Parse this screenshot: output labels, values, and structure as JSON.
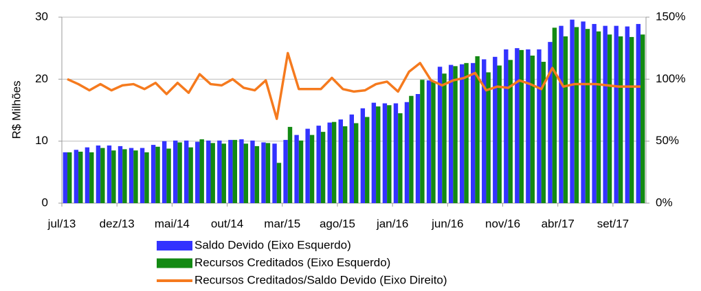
{
  "chart_data": {
    "type": "bar-line",
    "y_label": "R$ Milhões",
    "categories": [
      "jul/13",
      null,
      null,
      null,
      null,
      "dez/13",
      null,
      null,
      null,
      null,
      "mai/14",
      null,
      null,
      null,
      null,
      "out/14",
      null,
      null,
      null,
      null,
      "mar/15",
      null,
      null,
      null,
      null,
      "ago/15",
      null,
      null,
      null,
      null,
      "jan/16",
      null,
      null,
      null,
      null,
      "jun/16",
      null,
      null,
      null,
      null,
      "nov/16",
      null,
      null,
      null,
      null,
      "abr/17",
      null,
      null,
      null,
      null,
      "set/17",
      null,
      null
    ],
    "series": [
      {
        "name": "Saldo Devido (Eixo Esquerdo)",
        "kind": "bar",
        "color": "#3333ff",
        "values": [
          8.2,
          8.6,
          9.0,
          9.3,
          9.3,
          9.2,
          8.9,
          8.9,
          9.4,
          10.0,
          10.1,
          10.1,
          9.9,
          10.1,
          10.1,
          10.2,
          10.3,
          10.1,
          9.8,
          9.6,
          10.2,
          11.0,
          12.0,
          12.5,
          13.0,
          13.5,
          14.3,
          15.3,
          16.2,
          16.1,
          16.1,
          16.3,
          17.6,
          19.8,
          22.0,
          22.3,
          22.4,
          22.6,
          23.2,
          23.6,
          24.8,
          25.0,
          24.8,
          24.8,
          26.0,
          28.6,
          29.6,
          29.3,
          28.9,
          28.6,
          28.6,
          28.5,
          28.9
        ]
      },
      {
        "name": "Recursos Creditados (Eixo Esquerdo)",
        "kind": "bar",
        "color": "#138a13",
        "values": [
          8.2,
          8.3,
          8.2,
          8.9,
          8.5,
          8.7,
          8.5,
          8.2,
          9.1,
          8.8,
          9.8,
          9.0,
          10.3,
          9.7,
          9.6,
          10.2,
          9.6,
          9.2,
          9.7,
          6.5,
          12.3,
          10.1,
          11.0,
          11.5,
          13.1,
          12.4,
          12.9,
          13.9,
          15.6,
          15.8,
          14.5,
          17.3,
          19.9,
          19.6,
          20.9,
          22.1,
          22.6,
          23.7,
          21.1,
          22.2,
          23.1,
          24.7,
          23.8,
          22.8,
          28.3,
          26.9,
          28.4,
          28.1,
          27.7,
          27.2,
          26.9,
          26.8,
          27.2
        ]
      },
      {
        "name": "Recursos Creditados/Saldo Devido (Eixo Direito)",
        "kind": "line",
        "axis": "y2",
        "color": "#f57a1e",
        "values": [
          100,
          96,
          91,
          96,
          91,
          95,
          96,
          92,
          97,
          88,
          97,
          89,
          104,
          96,
          95,
          100,
          93,
          91,
          99,
          68,
          121,
          92,
          92,
          92,
          101,
          92,
          90,
          91,
          96,
          98,
          90,
          106,
          113,
          99,
          95,
          99,
          101,
          105,
          91,
          94,
          93,
          99,
          96,
          92,
          109,
          94,
          96,
          96,
          96,
          95,
          94,
          94,
          94
        ]
      }
    ],
    "ylim": [
      0,
      30
    ],
    "yticks": [
      0,
      10,
      20,
      30
    ],
    "y2lim": [
      0,
      150
    ],
    "y2ticks": [
      {
        "value": 0,
        "label": "0%"
      },
      {
        "value": 50,
        "label": "50%"
      },
      {
        "value": 100,
        "label": "100%"
      },
      {
        "value": 150,
        "label": "150%"
      }
    ],
    "grid": true
  }
}
